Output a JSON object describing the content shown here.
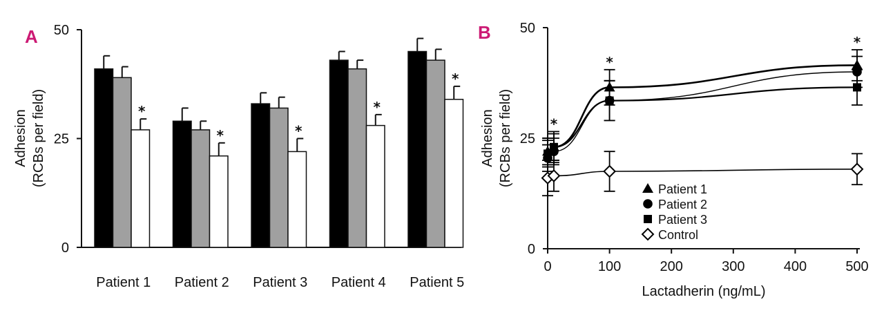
{
  "colors": {
    "panel_letter": "#cc1a74",
    "black": "#000000",
    "gray": "#a0a0a0",
    "white": "#ffffff",
    "axis": "#111111"
  },
  "chart_data": [
    {
      "panel": "A",
      "type": "bar",
      "ylabel_line1": "Adhesion",
      "ylabel_line2": "(RCBs per field)",
      "ylim": [
        0,
        50
      ],
      "yticks": [
        "0",
        "25",
        "50"
      ],
      "ytick_values": [
        0,
        25,
        50
      ],
      "categories": [
        "Patient 1",
        "Patient 2",
        "Patient 3",
        "Patient 4",
        "Patient 5"
      ],
      "series": [
        {
          "name": "black bar",
          "color": "#000000",
          "values": [
            41,
            29,
            33,
            43,
            45
          ],
          "errors": [
            3,
            3,
            2.5,
            2,
            3
          ]
        },
        {
          "name": "gray bar",
          "color": "#a0a0a0",
          "values": [
            39,
            27,
            32,
            41,
            43
          ],
          "errors": [
            2.5,
            2,
            2.5,
            2,
            2.5
          ]
        },
        {
          "name": "white bar",
          "color": "#ffffff",
          "values": [
            27,
            21,
            22,
            28,
            34
          ],
          "errors": [
            2.5,
            3,
            3,
            2.5,
            3
          ]
        }
      ],
      "significance_marker": "*"
    },
    {
      "panel": "B",
      "type": "line",
      "xlabel": "Lactadherin (ng/mL)",
      "ylabel_line1": "Adhesion",
      "ylabel_line2": "(RCBs per field)",
      "xlim": [
        0,
        500
      ],
      "ylim": [
        0,
        50
      ],
      "xticks": [
        "0",
        "100",
        "200",
        "300",
        "400",
        "500"
      ],
      "xtick_values": [
        0,
        100,
        200,
        300,
        400,
        500
      ],
      "yticks": [
        "0",
        "25",
        "50"
      ],
      "ytick_values": [
        0,
        25,
        50
      ],
      "x": [
        0,
        10,
        100,
        500
      ],
      "series": [
        {
          "name": "Patient 1",
          "marker": "triangle",
          "values": [
            22,
            23,
            36.5,
            41.5
          ],
          "errors": [
            3,
            3,
            4,
            3.5
          ],
          "line_width": 2.6
        },
        {
          "name": "Patient 2",
          "marker": "circle",
          "values": [
            20.5,
            22,
            33.5,
            40
          ],
          "errors": [
            3,
            3,
            4.5,
            3.5
          ],
          "line_width": 1.4
        },
        {
          "name": "Patient 3",
          "marker": "square",
          "values": [
            21.5,
            23,
            33.5,
            36.5
          ],
          "errors": [
            3,
            3.5,
            4.5,
            4
          ],
          "line_width": 2.2
        },
        {
          "name": "Control",
          "marker": "open-diamond",
          "values": [
            16,
            16.5,
            17.5,
            18
          ],
          "errors": [
            4,
            3.5,
            4.5,
            3.5
          ],
          "line_width": 1.6
        }
      ],
      "significance_x": [
        10,
        100,
        500
      ],
      "significance_marker": "*"
    }
  ]
}
